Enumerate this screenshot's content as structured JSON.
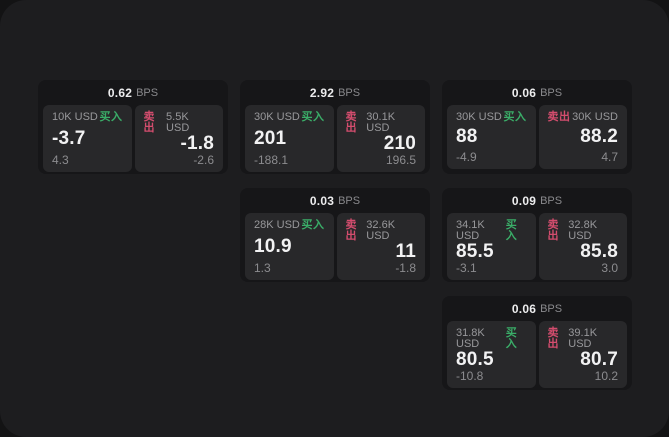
{
  "page": {
    "surface_color": "#1d1d1f",
    "backdrop_color": "#131314",
    "card_color": "#161618",
    "panel_color": "#28282a"
  },
  "colors": {
    "buy_green": "#3aad68",
    "sell_red": "#d44d6e",
    "primary_text": "#f2f2f3",
    "muted_text": "#8c8c8f"
  },
  "labels": {
    "bps": "BPS",
    "buy": "买入",
    "sell": "卖出"
  },
  "cards": [
    {
      "bps": "0.62",
      "buy": {
        "size": "10K USD",
        "price": "-3.7",
        "delta": "4.3"
      },
      "sell": {
        "size": "5.5K USD",
        "price": "-1.8",
        "delta": "-2.6"
      }
    },
    {
      "bps": "2.92",
      "buy": {
        "size": "30K USD",
        "price": "201",
        "delta": "-188.1"
      },
      "sell": {
        "size": "30.1K USD",
        "price": "210",
        "delta": "196.5"
      }
    },
    {
      "bps": "0.06",
      "buy": {
        "size": "30K USD",
        "price": "88",
        "delta": "-4.9"
      },
      "sell": {
        "size": "30K USD",
        "price": "88.2",
        "delta": "4.7"
      }
    },
    {
      "bps": "0.03",
      "buy": {
        "size": "28K USD",
        "price": "10.9",
        "delta": "1.3"
      },
      "sell": {
        "size": "32.6K USD",
        "price": "11",
        "delta": "-1.8"
      }
    },
    {
      "bps": "0.09",
      "buy": {
        "size": "34.1K USD",
        "price": "85.5",
        "delta": "-3.1"
      },
      "sell": {
        "size": "32.8K USD",
        "price": "85.8",
        "delta": "3.0"
      }
    },
    {
      "bps": "0.06",
      "buy": {
        "size": "31.8K USD",
        "price": "80.5",
        "delta": "-10.8"
      },
      "sell": {
        "size": "39.1K USD",
        "price": "80.7",
        "delta": "10.2"
      }
    }
  ]
}
